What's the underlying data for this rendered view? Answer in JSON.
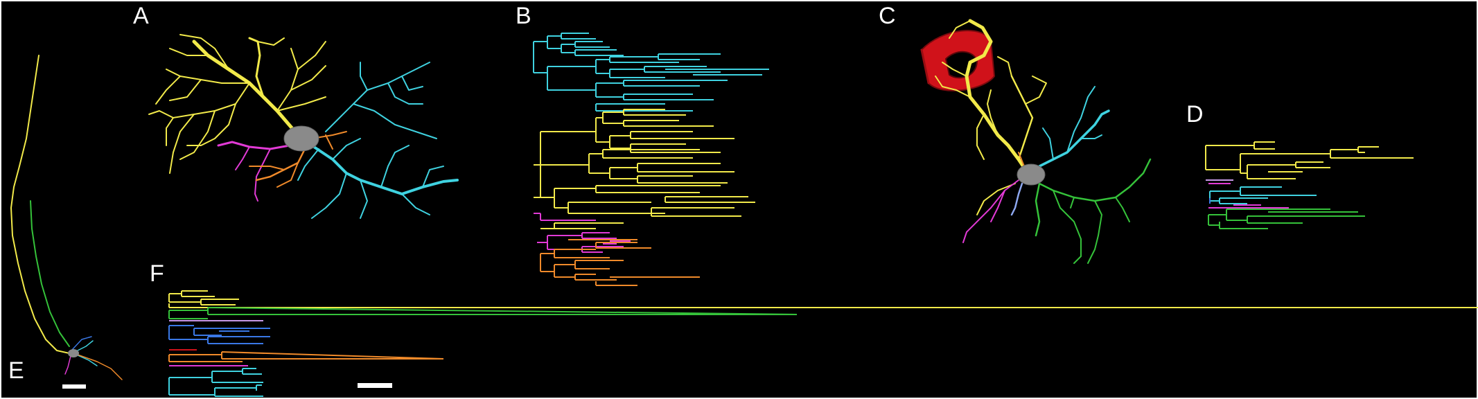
{
  "panels": {
    "A": "A",
    "B": "B",
    "C": "C",
    "D": "D",
    "E": "E",
    "F": "F"
  },
  "colors": {
    "background": "#000000",
    "yellow": "#f2ea4a",
    "cyan": "#3fd2e0",
    "magenta": "#e23ad6",
    "orange": "#f08a2a",
    "green": "#35c23a",
    "blue": "#3a78e6",
    "lavender": "#c79ae8",
    "red": "#d0121a",
    "soma": "#8a8a8a",
    "scale_bar": "#ffffff"
  },
  "icons": {
    "soma": "gray-cell-body",
    "obstacle": "red-cylinder-ring"
  }
}
